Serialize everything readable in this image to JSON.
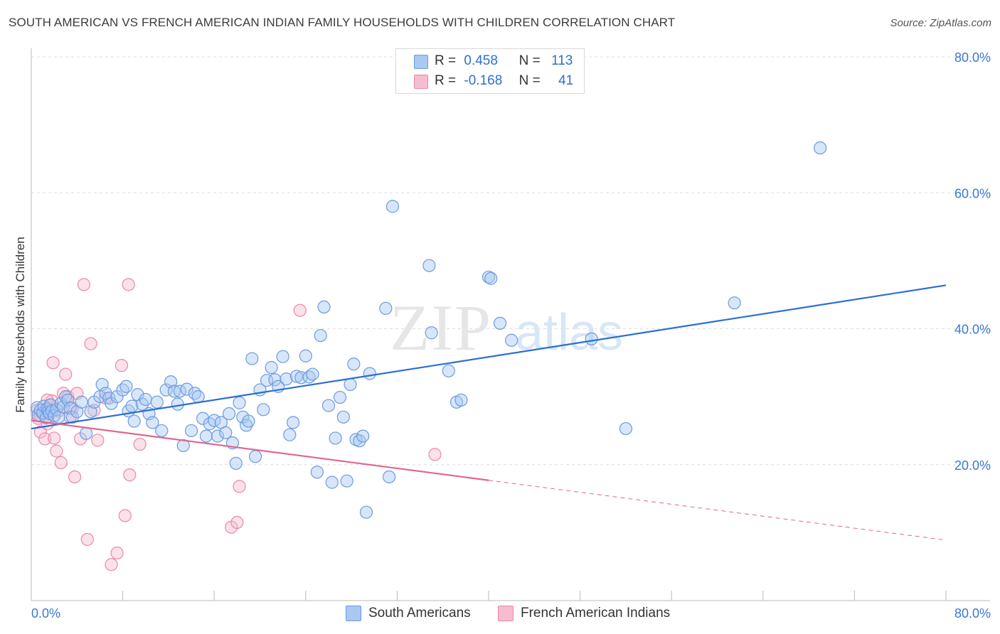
{
  "header": {
    "title": "SOUTH AMERICAN VS FRENCH AMERICAN INDIAN FAMILY HOUSEHOLDS WITH CHILDREN CORRELATION CHART",
    "source": "Source: ZipAtlas.com"
  },
  "legend_top": {
    "rows": [
      {
        "r_label": "R =",
        "r_value": "0.458",
        "n_label": "N =",
        "n_value": "113"
      },
      {
        "r_label": "R =",
        "r_value": "-0.168",
        "n_label": "N =",
        "n_value": "41"
      }
    ]
  },
  "colors": {
    "blue_fill": "#a9c8f2",
    "blue_stroke": "#6b9be0",
    "blue_line": "#2a6fd1",
    "pink_fill": "#f6bcd0",
    "pink_stroke": "#e889a8",
    "pink_line": "#e06590",
    "axis_text": "#3a78d1",
    "grid": "#dddddd"
  },
  "chart_data": {
    "type": "scatter",
    "title": "SOUTH AMERICAN VS FRENCH AMERICAN INDIAN FAMILY HOUSEHOLDS WITH CHILDREN CORRELATION CHART",
    "xlabel": "",
    "ylabel": "Family Households with Children",
    "xlim": [
      0,
      80
    ],
    "ylim": [
      0,
      80
    ],
    "x_tick_labels": [
      "0.0%",
      "80.0%"
    ],
    "y_ticks": [
      20,
      40,
      60,
      80
    ],
    "y_tick_labels": [
      "20.0%",
      "40.0%",
      "60.0%",
      "80.0%"
    ],
    "grid": true,
    "legend_position": "bottom",
    "watermark": "ZIPatlas",
    "series": [
      {
        "name": "South Americans",
        "r": 0.458,
        "n": 113,
        "trend": {
          "x": [
            0,
            80
          ],
          "y": [
            25.3,
            46.4
          ],
          "dashed_from": null
        },
        "points": [
          [
            0.5,
            28.4
          ],
          [
            0.6,
            27.3
          ],
          [
            0.8,
            28.0
          ],
          [
            1.0,
            27.6
          ],
          [
            1.1,
            28.6
          ],
          [
            1.3,
            26.9
          ],
          [
            1.4,
            28.2
          ],
          [
            1.5,
            27.8
          ],
          [
            1.6,
            27.5
          ],
          [
            1.7,
            28.8
          ],
          [
            1.8,
            27.9
          ],
          [
            2.0,
            27.2
          ],
          [
            2.2,
            28.1
          ],
          [
            2.4,
            27.0
          ],
          [
            2.6,
            29.0
          ],
          [
            2.8,
            28.5
          ],
          [
            3.0,
            30.0
          ],
          [
            3.2,
            29.5
          ],
          [
            3.4,
            28.3
          ],
          [
            3.6,
            27.0
          ],
          [
            4.0,
            27.8
          ],
          [
            4.4,
            29.2
          ],
          [
            4.8,
            24.6
          ],
          [
            5.2,
            27.8
          ],
          [
            5.5,
            29.2
          ],
          [
            6.0,
            30.0
          ],
          [
            6.2,
            31.8
          ],
          [
            6.5,
            30.5
          ],
          [
            6.8,
            29.8
          ],
          [
            7.0,
            29.0
          ],
          [
            7.5,
            30.0
          ],
          [
            8.0,
            31.0
          ],
          [
            8.3,
            31.5
          ],
          [
            8.5,
            27.9
          ],
          [
            8.8,
            28.6
          ],
          [
            9.0,
            26.4
          ],
          [
            9.3,
            30.3
          ],
          [
            9.7,
            28.9
          ],
          [
            10.0,
            29.6
          ],
          [
            10.3,
            27.5
          ],
          [
            10.6,
            26.2
          ],
          [
            11.0,
            29.2
          ],
          [
            11.4,
            25.0
          ],
          [
            11.8,
            31.0
          ],
          [
            12.2,
            32.2
          ],
          [
            12.5,
            30.8
          ],
          [
            12.8,
            28.9
          ],
          [
            13.0,
            30.8
          ],
          [
            13.3,
            22.8
          ],
          [
            13.6,
            31.1
          ],
          [
            14.0,
            25.0
          ],
          [
            14.3,
            30.5
          ],
          [
            14.6,
            30.0
          ],
          [
            15.0,
            26.8
          ],
          [
            15.3,
            24.2
          ],
          [
            15.6,
            26.0
          ],
          [
            16.0,
            26.5
          ],
          [
            16.3,
            24.2
          ],
          [
            16.6,
            26.2
          ],
          [
            17.0,
            24.7
          ],
          [
            17.3,
            27.5
          ],
          [
            17.6,
            23.2
          ],
          [
            17.9,
            20.2
          ],
          [
            18.2,
            29.1
          ],
          [
            18.5,
            27.0
          ],
          [
            18.8,
            25.8
          ],
          [
            19.0,
            26.4
          ],
          [
            19.3,
            35.6
          ],
          [
            19.6,
            21.2
          ],
          [
            20.0,
            31.0
          ],
          [
            20.3,
            28.1
          ],
          [
            20.6,
            32.4
          ],
          [
            21.0,
            34.3
          ],
          [
            21.3,
            32.5
          ],
          [
            21.6,
            31.5
          ],
          [
            22.0,
            35.9
          ],
          [
            22.3,
            32.6
          ],
          [
            22.6,
            24.4
          ],
          [
            22.9,
            26.2
          ],
          [
            23.2,
            33.0
          ],
          [
            23.6,
            32.8
          ],
          [
            24.0,
            36.0
          ],
          [
            24.3,
            32.9
          ],
          [
            24.6,
            33.3
          ],
          [
            25.0,
            18.9
          ],
          [
            25.3,
            39.0
          ],
          [
            25.6,
            43.2
          ],
          [
            26.0,
            28.7
          ],
          [
            26.3,
            17.4
          ],
          [
            26.6,
            23.9
          ],
          [
            27.0,
            29.9
          ],
          [
            27.3,
            27.0
          ],
          [
            27.6,
            17.6
          ],
          [
            27.9,
            31.8
          ],
          [
            28.2,
            34.8
          ],
          [
            28.4,
            23.7
          ],
          [
            28.7,
            23.5
          ],
          [
            29.0,
            24.2
          ],
          [
            29.3,
            13.0
          ],
          [
            29.6,
            33.4
          ],
          [
            31.0,
            43.0
          ],
          [
            31.3,
            18.2
          ],
          [
            31.6,
            58.0
          ],
          [
            34.8,
            49.3
          ],
          [
            35.0,
            39.4
          ],
          [
            36.5,
            33.8
          ],
          [
            37.2,
            29.2
          ],
          [
            37.6,
            29.5
          ],
          [
            40.0,
            47.6
          ],
          [
            40.2,
            47.4
          ],
          [
            41.0,
            40.8
          ],
          [
            42.0,
            38.3
          ],
          [
            49.0,
            38.5
          ],
          [
            52.0,
            25.3
          ],
          [
            61.5,
            43.8
          ],
          [
            69.0,
            66.6
          ]
        ]
      },
      {
        "name": "French American Indians",
        "r": -0.168,
        "n": 41,
        "trend": {
          "x": [
            0,
            80
          ],
          "y": [
            26.5,
            8.9
          ],
          "dashed_from": 40
        },
        "points": [
          [
            0.5,
            28.0
          ],
          [
            0.6,
            26.8
          ],
          [
            0.8,
            24.8
          ],
          [
            1.0,
            27.5
          ],
          [
            1.2,
            23.8
          ],
          [
            1.4,
            26.0
          ],
          [
            1.6,
            28.8
          ],
          [
            1.8,
            29.4
          ],
          [
            1.9,
            35.0
          ],
          [
            2.0,
            23.9
          ],
          [
            2.2,
            22.0
          ],
          [
            2.4,
            27.9
          ],
          [
            2.6,
            20.3
          ],
          [
            2.8,
            30.5
          ],
          [
            3.0,
            33.3
          ],
          [
            3.2,
            30.0
          ],
          [
            3.4,
            27.0
          ],
          [
            3.6,
            28.3
          ],
          [
            3.8,
            18.2
          ],
          [
            4.0,
            30.5
          ],
          [
            4.3,
            23.8
          ],
          [
            4.6,
            46.5
          ],
          [
            4.9,
            9.0
          ],
          [
            5.2,
            37.8
          ],
          [
            5.5,
            28.0
          ],
          [
            5.8,
            23.6
          ],
          [
            6.5,
            29.8
          ],
          [
            7.0,
            5.3
          ],
          [
            7.5,
            7.0
          ],
          [
            7.9,
            34.6
          ],
          [
            8.2,
            12.5
          ],
          [
            8.5,
            46.5
          ],
          [
            8.6,
            18.5
          ],
          [
            9.5,
            23.0
          ],
          [
            17.5,
            10.8
          ],
          [
            18.0,
            11.5
          ],
          [
            18.2,
            16.8
          ],
          [
            23.5,
            42.7
          ],
          [
            35.3,
            21.5
          ],
          [
            0.8,
            27.2
          ],
          [
            1.4,
            29.5
          ]
        ]
      }
    ]
  },
  "legend_bottom": {
    "items": [
      {
        "label": "South Americans"
      },
      {
        "label": "French American Indians"
      }
    ]
  }
}
